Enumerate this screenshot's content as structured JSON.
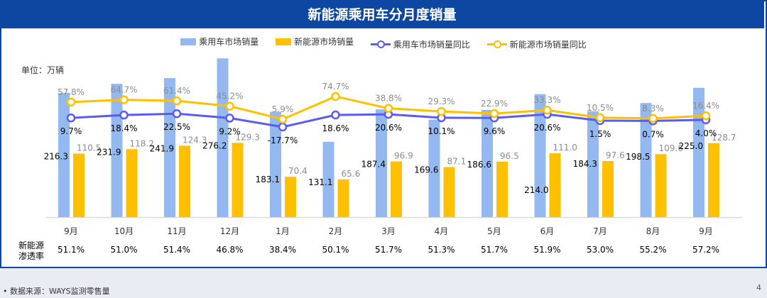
{
  "title": "新能源乘用车分月度销量",
  "unit_label": "单位：万辆",
  "penetration_label": [
    "新能源",
    "渗透率"
  ],
  "footer": "•     数据来源：WAYS监测零售量",
  "page_number": "4",
  "colors": {
    "title_bg": "#0d47a1",
    "passenger_bar": "#94b8f0",
    "nev_bar": "#ffc000",
    "passenger_line": "#5b5bf0",
    "nev_line": "#ffc000"
  },
  "chart_data": {
    "type": "bar+line",
    "categories": [
      "9月",
      "10月",
      "11月",
      "12月",
      "1月",
      "2月",
      "3月",
      "4月",
      "5月",
      "6月",
      "7月",
      "8月",
      "9月"
    ],
    "legend": [
      "乘用车市场销量",
      "新能源市场销量",
      "乘用车市场销量同比",
      "新能源市场销量同比"
    ],
    "legend_position": "top",
    "series": [
      {
        "name": "乘用车市场销量",
        "type": "bar",
        "values": [
          216.3,
          231.9,
          241.9,
          276.2,
          183.1,
          131.1,
          187.4,
          169.6,
          186.6,
          214.0,
          184.3,
          198.5,
          225.0
        ]
      },
      {
        "name": "新能源市场销量",
        "type": "bar",
        "values": [
          110.5,
          118.2,
          124.3,
          129.3,
          70.4,
          65.6,
          96.9,
          87.1,
          96.5,
          111.0,
          97.6,
          109.6,
          128.7
        ]
      },
      {
        "name": "乘用车市场销量同比",
        "type": "line",
        "unit": "%",
        "values": [
          9.7,
          18.4,
          22.5,
          9.2,
          -17.7,
          18.6,
          20.6,
          10.1,
          9.6,
          20.6,
          1.5,
          0.7,
          4.0
        ]
      },
      {
        "name": "新能源市场销量同比",
        "type": "line",
        "unit": "%",
        "values": [
          57.8,
          64.7,
          61.4,
          45.2,
          5.9,
          74.7,
          38.8,
          29.3,
          22.9,
          33.3,
          10.5,
          8.3,
          16.4
        ]
      }
    ],
    "penetration": [
      "51.1%",
      "51.0%",
      "51.4%",
      "46.8%",
      "38.4%",
      "50.1%",
      "51.7%",
      "51.3%",
      "51.7%",
      "51.9%",
      "53.0%",
      "55.2%",
      "57.2%"
    ],
    "grid": false
  }
}
